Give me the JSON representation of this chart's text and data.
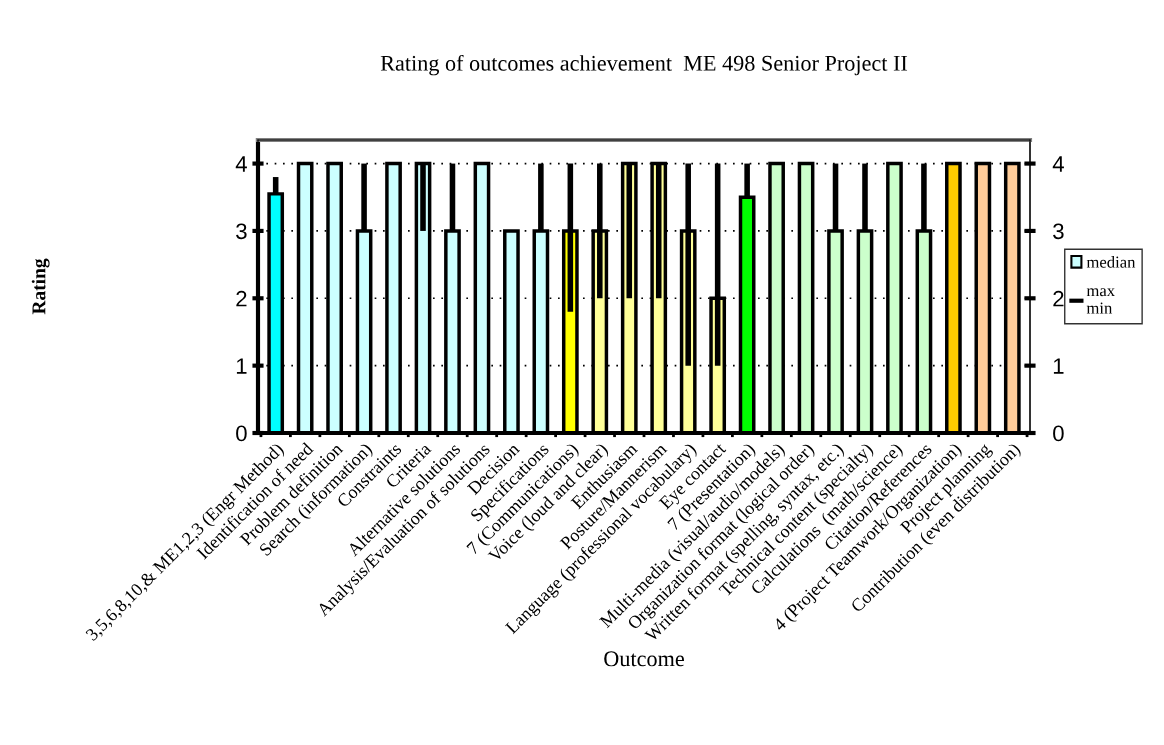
{
  "chart_data": {
    "type": "bar",
    "title": "Rating of outcomes achievement  ME 498 Senior Project II",
    "xlabel": "Outcome",
    "ylabel": "Rating",
    "categories": [
      "3,5,6,8,10,& ME1,2,3 (Engr Method)",
      "Identification of need",
      "Problem definition",
      "Search (information)",
      "Constraints",
      "Criteria",
      "Alternative solutions",
      "Analysis/Evaluation of solutions",
      "Decision",
      "Specifications",
      "7 (Communications)",
      "Voice (loud and clear)",
      "Enthusiasm",
      "Posture/Mannerism",
      "Language (professional vocabulary)",
      "Eye contact",
      "7 (Presentation)",
      "Multi-media (visual/audio/models)",
      "Organization format (logical order)",
      "Written format (spelling, syntax, etc.)",
      "Technical content (specialty)",
      "Calculations  (math/science)",
      "Citation/References",
      "4 (Project Teamwork/Organization)",
      "Project planning",
      "Contribution (even distribution)"
    ],
    "series": [
      {
        "name": "median",
        "color": "#ccffff",
        "values": [
          3.55,
          4,
          4,
          3,
          4,
          4,
          3,
          4,
          3,
          3,
          3,
          3,
          4,
          4,
          3,
          2,
          3.5,
          4,
          4,
          3,
          3,
          4,
          3,
          4,
          4,
          4
        ],
        "colors": [
          "#00ffff",
          "#ccffff",
          "#ccffff",
          "#ccffff",
          "#ccffff",
          "#ccffff",
          "#ccffff",
          "#ccffff",
          "#ccffff",
          "#ccffff",
          "#ffff00",
          "#ffff99",
          "#ffff99",
          "#ffff99",
          "#ffff99",
          "#ffff99",
          "#00ff00",
          "#ccffcc",
          "#ccffcc",
          "#ccffcc",
          "#ccffcc",
          "#ccffcc",
          "#ccffcc",
          "#ffcc00",
          "#ffcc99",
          "#ffcc99"
        ],
        "errors": [
          [
            3.55,
            3.8
          ],
          [
            4,
            4
          ],
          [
            4,
            4
          ],
          [
            3,
            4
          ],
          [
            4,
            4
          ],
          [
            3,
            4
          ],
          [
            3,
            4
          ],
          [
            4,
            4
          ],
          [
            3,
            3
          ],
          [
            3,
            4
          ],
          [
            1.8,
            4
          ],
          [
            2,
            4
          ],
          [
            2,
            4
          ],
          [
            2,
            4
          ],
          [
            1,
            4
          ],
          [
            1,
            4
          ],
          [
            3.5,
            4
          ],
          [
            4,
            4
          ],
          [
            4,
            4
          ],
          [
            3,
            4
          ],
          [
            3,
            4
          ],
          [
            4,
            4
          ],
          [
            3,
            4
          ],
          [
            4,
            4
          ],
          [
            4,
            4
          ],
          [
            4,
            4
          ]
        ]
      }
    ],
    "annotations": [
      "max",
      "min"
    ],
    "ylim": [
      0,
      4.35
    ],
    "yticks": [
      0,
      1,
      2,
      3,
      4
    ],
    "y2lim": [
      0,
      4.35
    ],
    "y2ticks": [
      0,
      1,
      2,
      3,
      4
    ],
    "grid": "y",
    "legend": "right"
  }
}
